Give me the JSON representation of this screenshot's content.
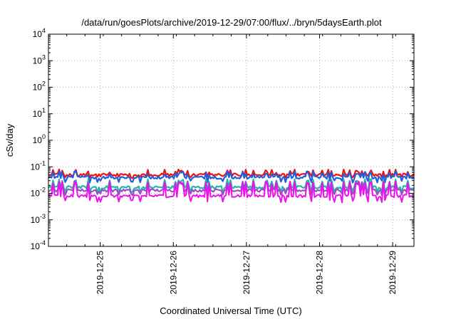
{
  "chart_data": {
    "type": "line",
    "title": "/data/run/goesPlots/archive/2019-12-29/07:00/flux/../bryn/5daysEarth.plot",
    "xlabel": "Coordinated Universal Time (UTC)",
    "ylabel": "cSv/day",
    "y_scale": "log",
    "ylim": [
      0.0001,
      10000
    ],
    "y_ticks": [
      {
        "value": 10000,
        "base": "10",
        "exp": "4"
      },
      {
        "value": 1000,
        "base": "10",
        "exp": "3"
      },
      {
        "value": 100,
        "base": "10",
        "exp": "2"
      },
      {
        "value": 10,
        "base": "10",
        "exp": "1"
      },
      {
        "value": 1,
        "base": "10",
        "exp": "0"
      },
      {
        "value": 0.1,
        "base": "10",
        "exp": "-1"
      },
      {
        "value": 0.01,
        "base": "10",
        "exp": "-2"
      },
      {
        "value": 0.001,
        "base": "10",
        "exp": "-3"
      },
      {
        "value": 0.0001,
        "base": "10",
        "exp": "-4"
      }
    ],
    "xlim": [
      "2019-12-24 07:00",
      "2019-12-29 07:00"
    ],
    "x_ticks": [
      "2019-12-25",
      "2019-12-26",
      "2019-12-27",
      "2019-12-28",
      "2019-12-29"
    ],
    "grid": true,
    "legend": "none",
    "series": [
      {
        "color": "#ee1111",
        "base": 0.05,
        "high": 0.07,
        "low": 0.042,
        "spikes": []
      },
      {
        "color": "#1f5fdd",
        "base": 0.04,
        "high": 0.06,
        "low": 0.028,
        "spikes": []
      },
      {
        "color": "#23b5a6",
        "base": 0.017,
        "high": 0.03,
        "low": 0.011,
        "spikes": []
      },
      {
        "color": "#9a4fc8",
        "base": 0.013,
        "high": 0.025,
        "low": 0.009,
        "spikes": []
      },
      {
        "color": "#ee11ee",
        "base": 0.008,
        "high": 0.025,
        "low": 0.005,
        "spikes": []
      }
    ]
  }
}
